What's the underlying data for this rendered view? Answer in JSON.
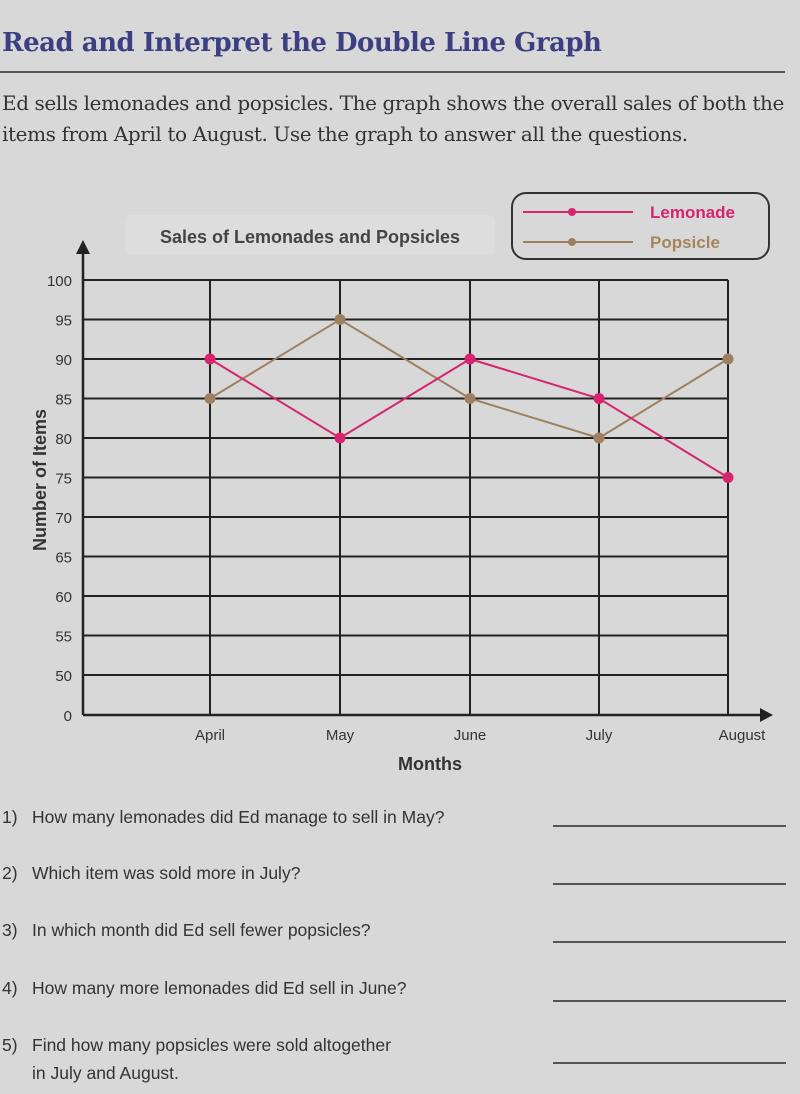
{
  "header": {
    "title": "Read and Interpret the Double Line Graph",
    "intro": "Ed sells lemonades and popsicles. The graph shows the overall sales of both the items from April to August. Use the graph to answer all the questions."
  },
  "chart_data": {
    "type": "line",
    "title": "Sales of Lemonades and Popsicles",
    "xlabel": "Months",
    "ylabel": "Number of Items",
    "categories": [
      "April",
      "May",
      "June",
      "July",
      "August"
    ],
    "yticks": [
      "0",
      "50",
      "55",
      "60",
      "65",
      "70",
      "75",
      "80",
      "85",
      "90",
      "95",
      "100"
    ],
    "ylim": [
      0,
      100
    ],
    "y_axis_break": "0 then 50 to 100",
    "grid": true,
    "legend_placement": "top-right",
    "series": [
      {
        "name": "Lemonade",
        "values": [
          90,
          80,
          90,
          85,
          75
        ],
        "color": "#d6246e"
      },
      {
        "name": "Popsicle",
        "values": [
          85,
          95,
          85,
          80,
          90
        ],
        "color": "#9e8060"
      }
    ]
  },
  "questions": [
    {
      "number": "1)",
      "text": "How many lemonades did Ed manage to sell in May?"
    },
    {
      "number": "2)",
      "text": "Which item was sold more in July?"
    },
    {
      "number": "3)",
      "text": "In which month did Ed sell fewer popsicles?"
    },
    {
      "number": "4)",
      "text": "How many more lemonades did Ed sell in June?"
    },
    {
      "number": "5)",
      "text": "Find how many popsicles were sold altogether",
      "text2": "in July and August."
    }
  ]
}
